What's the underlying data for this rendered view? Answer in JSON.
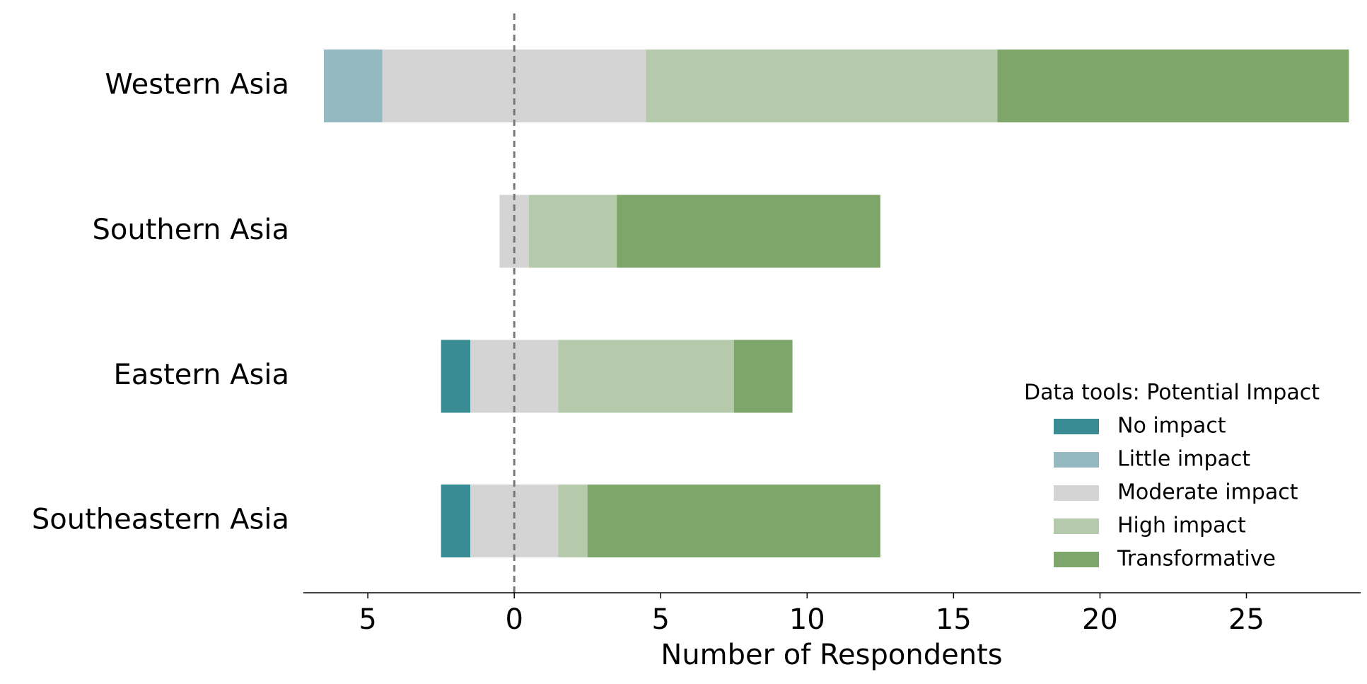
{
  "chart_data": {
    "type": "diverging-bar",
    "x_label": "Number of Respondents",
    "legend_title": "Data tools: Potential Impact",
    "legend_position": "lower right",
    "categories": [
      "Western Asia",
      "Southern Asia",
      "Eastern Asia",
      "Southeastern Asia"
    ],
    "series": [
      {
        "name": "No impact",
        "color": "#3a8c94",
        "values": [
          0,
          0,
          1,
          1
        ]
      },
      {
        "name": "Little impact",
        "color": "#95b9c0",
        "values": [
          2,
          0,
          0,
          0
        ]
      },
      {
        "name": "Moderate impact",
        "color": "#d4d4d4",
        "values": [
          9,
          1,
          3,
          3
        ]
      },
      {
        "name": "High impact",
        "color": "#b5caaa",
        "values": [
          12,
          3,
          6,
          1
        ]
      },
      {
        "name": "Transformative",
        "color": "#7ea66b",
        "values": [
          12,
          9,
          2,
          10
        ]
      }
    ],
    "xlim": [
      -7.2,
      28.9
    ],
    "xticks": [
      {
        "value": -5,
        "label": "5"
      },
      0,
      5,
      10,
      15,
      20,
      25
    ]
  }
}
